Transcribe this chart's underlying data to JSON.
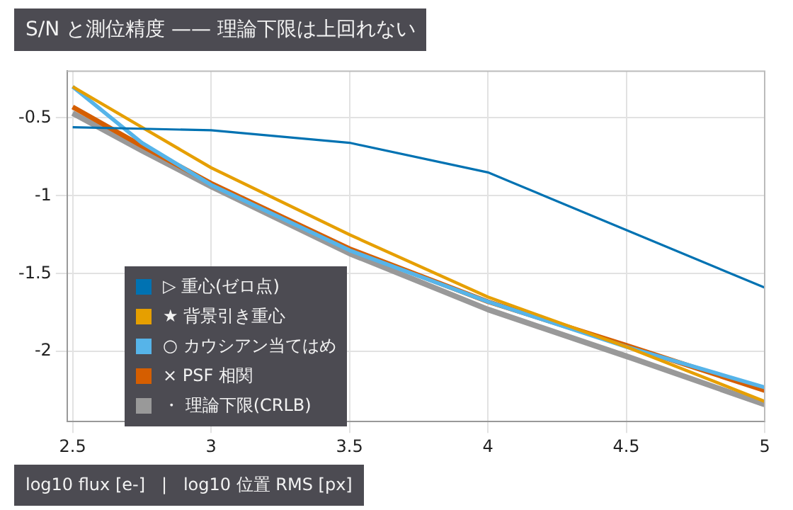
{
  "chart_data": {
    "type": "line",
    "title": "S/N と測位精度 —— 理論下限は上回れない",
    "xlabel": "log10 flux [e-]   |   log10 位置 RMS [px]",
    "x": [
      2.5,
      2.75,
      3,
      3.5,
      4,
      4.5,
      5
    ],
    "series": [
      {
        "name": "▷ 重心(ゼロ点)",
        "color": "#0072b2",
        "values": [
          -0.56,
          -0.57,
          -0.58,
          -0.66,
          -0.85,
          -1.22,
          -1.59
        ]
      },
      {
        "name": "★ 背景引き重心",
        "color": "#e69f00",
        "values": [
          -0.3,
          -0.56,
          -0.82,
          -1.25,
          -1.65,
          -1.97,
          -2.32
        ]
      },
      {
        "name": "○ カウシアン当てはめ",
        "color": "#56b4e9",
        "values": [
          -0.3,
          -0.66,
          -0.93,
          -1.35,
          -1.68,
          -1.97,
          -2.23
        ]
      },
      {
        "name": "× PSF 相関",
        "color": "#d55e00",
        "values": [
          -0.43,
          -0.68,
          -0.92,
          -1.34,
          -1.68,
          -1.96,
          -2.25
        ]
      },
      {
        "name": "・ 理論下限(CRLB)",
        "color": "#999999",
        "values": [
          -0.47,
          -0.71,
          -0.94,
          -1.37,
          -1.73,
          -2.03,
          -2.34
        ]
      }
    ],
    "xlim": [
      2.48,
      5
    ],
    "ylim": [
      -2.45,
      -0.2
    ],
    "xticks": [
      2.5,
      3,
      3.5,
      4,
      4.5,
      5
    ],
    "yticks": [
      -2,
      -1.5,
      -1,
      -0.5
    ],
    "grid": true,
    "legend": "bottom left"
  }
}
